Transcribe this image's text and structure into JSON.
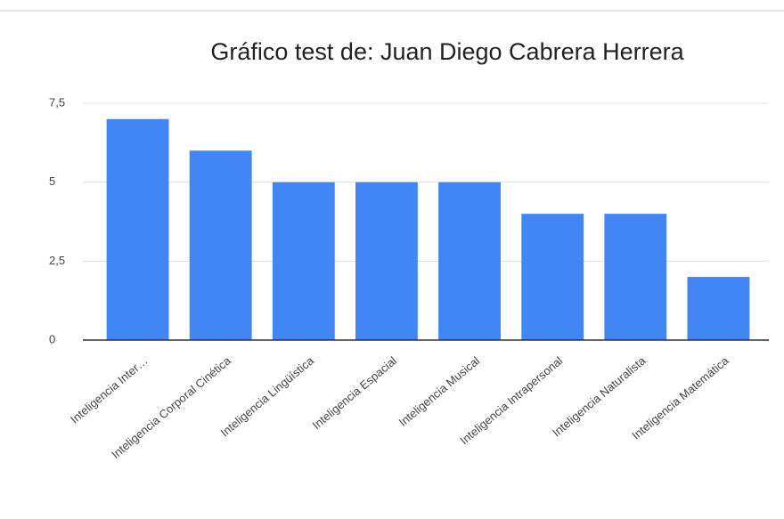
{
  "chart_data": {
    "type": "bar",
    "title": "Gráfico test de: Juan Diego Cabrera Herrera",
    "categories": [
      "Inteligencia Inter…",
      "Inteligencia Corporal Cinética",
      "Inteligencia Lingüística",
      "Inteligencia Espacial",
      "Inteligencia Musical",
      "Inteligencia Intrapersonal",
      "Inteligencia Naturalista",
      "Inteligencia Matemática"
    ],
    "values": [
      7,
      6,
      5,
      5,
      5,
      4,
      4,
      2
    ],
    "color": "#4285f4",
    "ylim": [
      0,
      7.5
    ],
    "yticks": [
      0,
      {
        "value": 2.5,
        "label": "2,5"
      },
      5,
      {
        "value": 7.5,
        "label": "7,5"
      }
    ],
    "grid": true
  }
}
